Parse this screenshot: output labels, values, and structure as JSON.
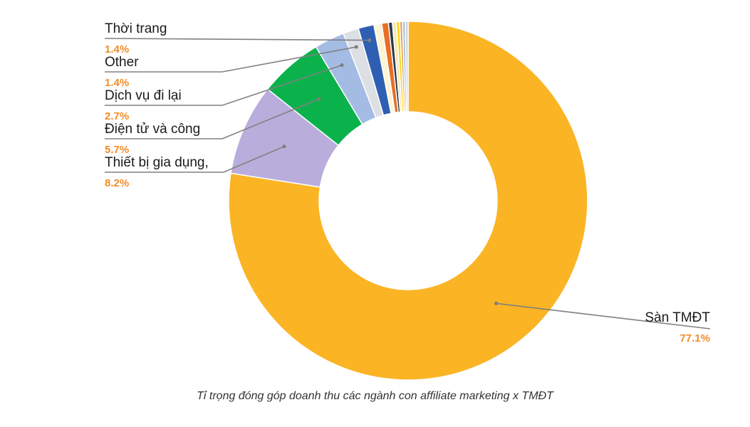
{
  "chart_data": {
    "type": "pie",
    "variant": "donut",
    "caption": "Tỉ  trọng đóng góp doanh thu các ngành con affiliate marketing x TMĐT",
    "label_color": "#1a1a1a",
    "percent_color": "#f28c28",
    "slices": [
      {
        "name": "Sàn TMĐT",
        "value": 77.1,
        "label": "77.1%",
        "color": "#fbb424"
      },
      {
        "name": "Thiết bị gia dụng,",
        "value": 8.2,
        "label": "8.2%",
        "color": "#b9addb"
      },
      {
        "name": "Điện tử và công",
        "value": 5.7,
        "label": "5.7%",
        "color": "#0bb24c"
      },
      {
        "name": "Dịch vụ đi lại",
        "value": 2.7,
        "label": "2.7%",
        "color": "#a4bce4"
      },
      {
        "name": "Other",
        "value": 1.4,
        "label": "1.4%",
        "color": "#dcdfe4"
      },
      {
        "name": "Thời trang",
        "value": 1.4,
        "label": "1.4%",
        "color": "#2f5fb2"
      },
      {
        "name": "",
        "value": 0.7,
        "label": "",
        "color": "#fdf4d6"
      },
      {
        "name": "",
        "value": 0.6,
        "label": "",
        "color": "#e86e25"
      },
      {
        "name": "",
        "value": 0.35,
        "label": "",
        "color": "#2a3a4e"
      },
      {
        "name": "",
        "value": 0.35,
        "label": "",
        "color": "#f6e7b0"
      },
      {
        "name": "",
        "value": 0.3,
        "label": "",
        "color": "#f5d820"
      },
      {
        "name": "",
        "value": 0.25,
        "label": "",
        "color": "#e9a45e"
      },
      {
        "name": "",
        "value": 0.25,
        "label": "",
        "color": "#a9c3e0"
      },
      {
        "name": "",
        "value": 0.25,
        "label": "",
        "color": "#c9d3df"
      }
    ]
  }
}
